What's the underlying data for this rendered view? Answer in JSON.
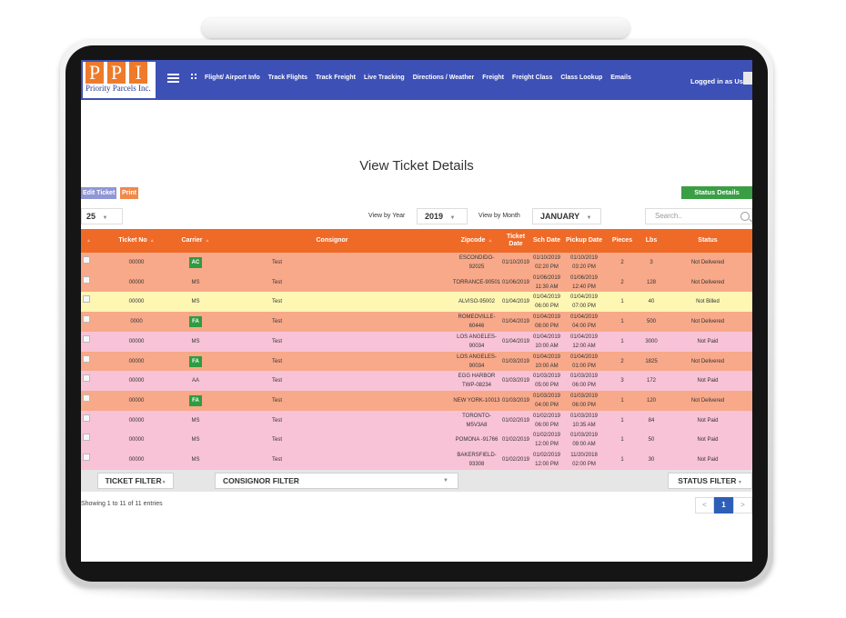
{
  "brand": {
    "letters": [
      "P",
      "P",
      "I"
    ],
    "name": "Priority Parcels Inc."
  },
  "nav": {
    "links": [
      "Flight/ Airport Info",
      "Track Flights",
      "Track Freight",
      "Live Tracking",
      "Directions / Weather",
      "Freight",
      "Freight Class",
      "Class Lookup",
      "Emails"
    ],
    "login_text": "Logged in as User"
  },
  "page": {
    "title": "View Ticket Details"
  },
  "actions": {
    "edit": "Edit Ticket",
    "print": "Print",
    "status_details": "Status Details"
  },
  "controls": {
    "page_size": "25",
    "year_label": "View by Year",
    "year_value": "2019",
    "month_label": "View by Month",
    "month_value": "JANUARY",
    "search_placeholder": "Search.."
  },
  "table": {
    "columns": [
      "Ticket No",
      "Carrier",
      "Consignor",
      "Zipcode",
      "Ticket Date",
      "Sch Date",
      "Pickup Date",
      "Pieces",
      "Lbs",
      "Status"
    ],
    "rows": [
      {
        "ticket": "00000",
        "carrier": "AC",
        "carrier_badge": true,
        "consignor": "Test",
        "zip": "ESCONDIDO-92025",
        "ticket_date": "01/10/2019",
        "sch_date": "01/10/2019 02:20 PM",
        "pickup_date": "01/10/2019 03:20 PM",
        "pieces": "2",
        "lbs": "3",
        "status": "Not Delivered",
        "color": "#f8a98a"
      },
      {
        "ticket": "00000",
        "carrier": "MS",
        "carrier_badge": false,
        "consignor": "Test",
        "zip": "TORRANCE-90501",
        "ticket_date": "01/06/2019",
        "sch_date": "01/06/2019 11:30 AM",
        "pickup_date": "01/06/2019 12:40 PM",
        "pieces": "2",
        "lbs": "128",
        "status": "Not Delivered",
        "color": "#f8a98a"
      },
      {
        "ticket": "00000",
        "carrier": "MS",
        "carrier_badge": false,
        "consignor": "Test",
        "zip": "ALVISO-95002",
        "ticket_date": "01/04/2019",
        "sch_date": "01/04/2019 06:00 PM",
        "pickup_date": "01/04/2019 07:00 PM",
        "pieces": "1",
        "lbs": "40",
        "status": "Not Billed",
        "color": "#fdf7b3"
      },
      {
        "ticket": "0000",
        "carrier": "FA",
        "carrier_badge": true,
        "consignor": "Test",
        "zip": "ROMEOVILLE-60446",
        "ticket_date": "01/04/2019",
        "sch_date": "01/04/2019 08:00 PM",
        "pickup_date": "01/04/2019 04:00 PM",
        "pieces": "1",
        "lbs": "500",
        "status": "Not Delivered",
        "color": "#f8a98a"
      },
      {
        "ticket": "00000",
        "carrier": "MS",
        "carrier_badge": false,
        "consignor": "Test",
        "zip": "LOS ANGELES-90034",
        "ticket_date": "01/04/2019",
        "sch_date": "01/04/2019 10:00 AM",
        "pickup_date": "01/04/2019 12:00 AM",
        "pieces": "1",
        "lbs": "3000",
        "status": "Not Paid",
        "color": "#f8c3d6"
      },
      {
        "ticket": "00000",
        "carrier": "FA",
        "carrier_badge": true,
        "consignor": "Test",
        "zip": "LOS ANGELES-90034",
        "ticket_date": "01/03/2019",
        "sch_date": "01/04/2019 10:00 AM",
        "pickup_date": "01/04/2019 01:00 PM",
        "pieces": "2",
        "lbs": "1825",
        "status": "Not Delivered",
        "color": "#f8a98a"
      },
      {
        "ticket": "00000",
        "carrier": "AA",
        "carrier_badge": false,
        "consignor": "Test",
        "zip": "EGG HARBOR TWP-08234",
        "ticket_date": "01/03/2019",
        "sch_date": "01/03/2019 05:00 PM",
        "pickup_date": "01/03/2019 06:00 PM",
        "pieces": "3",
        "lbs": "172",
        "status": "Not Paid",
        "color": "#f8c3d6"
      },
      {
        "ticket": "00000",
        "carrier": "FA",
        "carrier_badge": true,
        "consignor": "Test",
        "zip": "NEW YORK-10013",
        "ticket_date": "01/03/2019",
        "sch_date": "01/03/2019 04:00 PM",
        "pickup_date": "01/03/2019 06:00 PM",
        "pieces": "1",
        "lbs": "120",
        "status": "Not Delivered",
        "color": "#f8a98a"
      },
      {
        "ticket": "00000",
        "carrier": "MS",
        "carrier_badge": false,
        "consignor": "Test",
        "zip": "TORONTO-M5V3A8",
        "ticket_date": "01/02/2019",
        "sch_date": "01/02/2019 06:00 PM",
        "pickup_date": "01/03/2019 10:35 AM",
        "pieces": "1",
        "lbs": "84",
        "status": "Not Paid",
        "color": "#f8c3d6"
      },
      {
        "ticket": "00000",
        "carrier": "MS",
        "carrier_badge": false,
        "consignor": "Test",
        "zip": "POMONA -91766",
        "ticket_date": "01/02/2019",
        "sch_date": "01/02/2019 12:00 PM",
        "pickup_date": "01/03/2019 09:00 AM",
        "pieces": "1",
        "lbs": "50",
        "status": "Not Paid",
        "color": "#f8c3d6"
      },
      {
        "ticket": "00000",
        "carrier": "MS",
        "carrier_badge": false,
        "consignor": "Test",
        "zip": "BAKERSFIELD-93308",
        "ticket_date": "01/02/2019",
        "sch_date": "01/02/2019 12:00 PM",
        "pickup_date": "11/20/2018 02:00 PM",
        "pieces": "1",
        "lbs": "30",
        "status": "Not Paid",
        "color": "#f8c3d6"
      }
    ]
  },
  "filters": {
    "ticket": "TICKET FILTER",
    "consignor": "CONSIGNOR FILTER",
    "status": "STATUS FILTER"
  },
  "footer": {
    "entries": "Showing 1 to 11 of 11 entries",
    "prev": "<",
    "page": "1",
    "next": ">"
  },
  "icons": {
    "menu": "hamburger-icon",
    "apps": "grid-dots-icon",
    "search": "search-icon",
    "sort": "sort-icon",
    "user": "user-icon",
    "dropdown": "chevron-down-icon"
  },
  "colors": {
    "header": "#3d50b6",
    "table_header": "#ef6a27",
    "row_orange": "#f8a98a",
    "row_yellow": "#fdf7b3",
    "row_pink": "#f8c3d6",
    "status_button": "#3a9e45",
    "carrier_badge": "#2e9c40",
    "pager_active": "#2d5fb8"
  }
}
